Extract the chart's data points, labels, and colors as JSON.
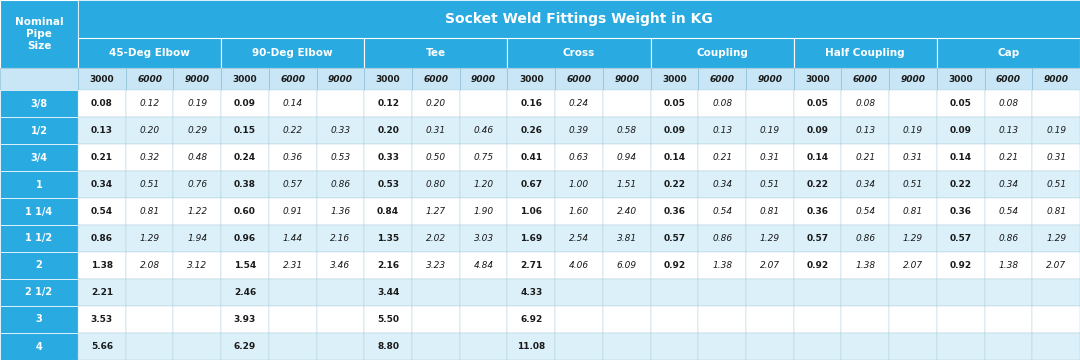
{
  "title": "Socket Weld Fittings Weight in KG",
  "title_bg": "#29ABE2",
  "col_header_bg": "#29ABE2",
  "row_header_bg": "#29ABE2",
  "pressure_header_bg": "#C8E6F5",
  "row_even_bg": "#FFFFFF",
  "row_odd_bg": "#DCF0FA",
  "pipe_sizes": [
    "3/8",
    "1/2",
    "3/4",
    "1",
    "1 1/4",
    "1 1/2",
    "2",
    "2 1/2",
    "3",
    "4"
  ],
  "categories": [
    "45-Deg Elbow",
    "90-Deg Elbow",
    "Tee",
    "Cross",
    "Coupling",
    "Half Coupling",
    "Cap"
  ],
  "pressures": [
    "3000",
    "6000",
    "9000"
  ],
  "data": {
    "45-Deg Elbow": {
      "3/8": [
        "0.08",
        "0.12",
        "0.19"
      ],
      "1/2": [
        "0.13",
        "0.20",
        "0.29"
      ],
      "3/4": [
        "0.21",
        "0.32",
        "0.48"
      ],
      "1": [
        "0.34",
        "0.51",
        "0.76"
      ],
      "1 1/4": [
        "0.54",
        "0.81",
        "1.22"
      ],
      "1 1/2": [
        "0.86",
        "1.29",
        "1.94"
      ],
      "2": [
        "1.38",
        "2.08",
        "3.12"
      ],
      "2 1/2": [
        "2.21",
        "",
        ""
      ],
      "3": [
        "3.53",
        "",
        ""
      ],
      "4": [
        "5.66",
        "",
        ""
      ]
    },
    "90-Deg Elbow": {
      "3/8": [
        "0.09",
        "0.14",
        ""
      ],
      "1/2": [
        "0.15",
        "0.22",
        "0.33"
      ],
      "3/4": [
        "0.24",
        "0.36",
        "0.53"
      ],
      "1": [
        "0.38",
        "0.57",
        "0.86"
      ],
      "1 1/4": [
        "0.60",
        "0.91",
        "1.36"
      ],
      "1 1/2": [
        "0.96",
        "1.44",
        "2.16"
      ],
      "2": [
        "1.54",
        "2.31",
        "3.46"
      ],
      "2 1/2": [
        "2.46",
        "",
        ""
      ],
      "3": [
        "3.93",
        "",
        ""
      ],
      "4": [
        "6.29",
        "",
        ""
      ]
    },
    "Tee": {
      "3/8": [
        "0.12",
        "0.20",
        ""
      ],
      "1/2": [
        "0.20",
        "0.31",
        "0.46"
      ],
      "3/4": [
        "0.33",
        "0.50",
        "0.75"
      ],
      "1": [
        "0.53",
        "0.80",
        "1.20"
      ],
      "1 1/4": [
        "0.84",
        "1.27",
        "1.90"
      ],
      "1 1/2": [
        "1.35",
        "2.02",
        "3.03"
      ],
      "2": [
        "2.16",
        "3.23",
        "4.84"
      ],
      "2 1/2": [
        "3.44",
        "",
        ""
      ],
      "3": [
        "5.50",
        "",
        ""
      ],
      "4": [
        "8.80",
        "",
        ""
      ]
    },
    "Cross": {
      "3/8": [
        "0.16",
        "0.24",
        ""
      ],
      "1/2": [
        "0.26",
        "0.39",
        "0.58"
      ],
      "3/4": [
        "0.41",
        "0.63",
        "0.94"
      ],
      "1": [
        "0.67",
        "1.00",
        "1.51"
      ],
      "1 1/4": [
        "1.06",
        "1.60",
        "2.40"
      ],
      "1 1/2": [
        "1.69",
        "2.54",
        "3.81"
      ],
      "2": [
        "2.71",
        "4.06",
        "6.09"
      ],
      "2 1/2": [
        "4.33",
        "",
        ""
      ],
      "3": [
        "6.92",
        "",
        ""
      ],
      "4": [
        "11.08",
        "",
        ""
      ]
    },
    "Coupling": {
      "3/8": [
        "0.05",
        "0.08",
        ""
      ],
      "1/2": [
        "0.09",
        "0.13",
        "0.19"
      ],
      "3/4": [
        "0.14",
        "0.21",
        "0.31"
      ],
      "1": [
        "0.22",
        "0.34",
        "0.51"
      ],
      "1 1/4": [
        "0.36",
        "0.54",
        "0.81"
      ],
      "1 1/2": [
        "0.57",
        "0.86",
        "1.29"
      ],
      "2": [
        "0.92",
        "1.38",
        "2.07"
      ],
      "2 1/2": [
        "",
        "",
        ""
      ],
      "3": [
        "",
        "",
        ""
      ],
      "4": [
        "",
        "",
        ""
      ]
    },
    "Half Coupling": {
      "3/8": [
        "0.05",
        "0.08",
        ""
      ],
      "1/2": [
        "0.09",
        "0.13",
        "0.19"
      ],
      "3/4": [
        "0.14",
        "0.21",
        "0.31"
      ],
      "1": [
        "0.22",
        "0.34",
        "0.51"
      ],
      "1 1/4": [
        "0.36",
        "0.54",
        "0.81"
      ],
      "1 1/2": [
        "0.57",
        "0.86",
        "1.29"
      ],
      "2": [
        "0.92",
        "1.38",
        "2.07"
      ],
      "2 1/2": [
        "",
        "",
        ""
      ],
      "3": [
        "",
        "",
        ""
      ],
      "4": [
        "",
        "",
        ""
      ]
    },
    "Cap": {
      "3/8": [
        "0.05",
        "0.08",
        ""
      ],
      "1/2": [
        "0.09",
        "0.13",
        "0.19"
      ],
      "3/4": [
        "0.14",
        "0.21",
        "0.31"
      ],
      "1": [
        "0.22",
        "0.34",
        "0.51"
      ],
      "1 1/4": [
        "0.36",
        "0.54",
        "0.81"
      ],
      "1 1/2": [
        "0.57",
        "0.86",
        "1.29"
      ],
      "2": [
        "0.92",
        "1.38",
        "2.07"
      ],
      "2 1/2": [
        "",
        "",
        ""
      ],
      "3": [
        "",
        "",
        ""
      ],
      "4": [
        "",
        "",
        ""
      ]
    }
  }
}
